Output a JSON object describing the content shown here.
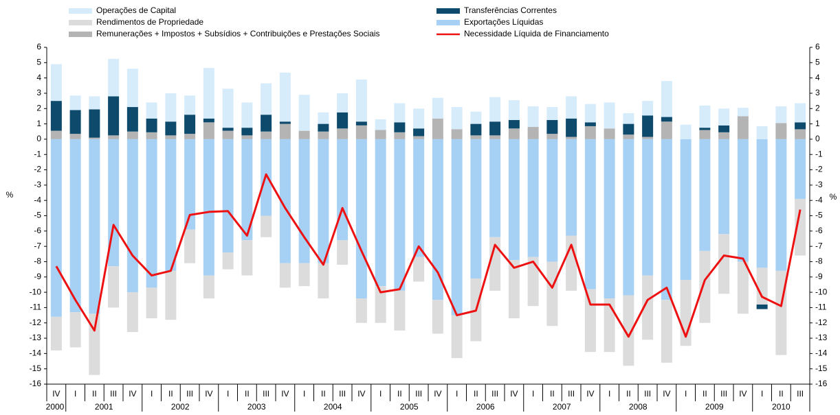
{
  "chart_data": {
    "type": "bar",
    "stacked": true,
    "ylabel": "%",
    "y2label": "%",
    "categories": [
      "IV",
      "I",
      "II",
      "III",
      "IV",
      "I",
      "II",
      "III",
      "IV",
      "I",
      "II",
      "III",
      "IV",
      "I",
      "II",
      "III",
      "IV",
      "I",
      "II",
      "III",
      "IV",
      "I",
      "II",
      "III",
      "IV",
      "I",
      "II",
      "III",
      "IV",
      "I",
      "II",
      "III",
      "IV",
      "I",
      "II",
      "III",
      "IV",
      "I",
      "II",
      "III"
    ],
    "year_labels": [
      "2000",
      "2001",
      "2002",
      "2003",
      "2004",
      "2005",
      "2006",
      "2007",
      "2008",
      "2009",
      "2010"
    ],
    "ylim": [
      -16,
      6
    ],
    "yticks": [
      -16,
      -15,
      -14,
      -13,
      -12,
      -11,
      -10,
      -9,
      -8,
      -7,
      -6,
      -5,
      -4,
      -3,
      -2,
      -1,
      0,
      1,
      2,
      3,
      4,
      5,
      6
    ],
    "y2lim": [
      -16,
      6
    ],
    "y2ticks": [
      -16,
      -15,
      -14,
      -13,
      -12,
      -11,
      -10,
      -9,
      -8,
      -7,
      -6,
      -5,
      -4,
      -3,
      -2,
      -1,
      0,
      1,
      2,
      3,
      4,
      5,
      6
    ],
    "series": [
      {
        "name": "Operações de Capital",
        "color": "#d6ecfb",
        "values": [
          2.4,
          0.95,
          0.85,
          2.45,
          2.5,
          1.05,
          1.85,
          1.25,
          3.3,
          2.55,
          1.65,
          2.05,
          3.2,
          2.35,
          0.75,
          1.25,
          2.75,
          0.7,
          1.25,
          1.3,
          1.35,
          1.45,
          0.8,
          1.6,
          1.3,
          1.35,
          0.85,
          1.45,
          1.2,
          1.7,
          0.7,
          0.95,
          2.35,
          0.95,
          1.45,
          1.1,
          0.55,
          0.85,
          1.1,
          1.25
        ]
      },
      {
        "name": "Rendimentos de Propriedade",
        "color": "#dcdcdc",
        "values": [
          -2.2,
          -2.3,
          -4.0,
          -2.7,
          -2.6,
          -2.0,
          -3.2,
          -2.2,
          -1.5,
          -1.1,
          -2.3,
          -1.4,
          -1.6,
          -1.5,
          -2.3,
          -1.6,
          -1.6,
          -2.4,
          -2.6,
          -1.6,
          -2.2,
          -2.8,
          -4.1,
          -3.5,
          -3.8,
          -3.2,
          -4.2,
          -3.6,
          -4.1,
          -3.5,
          -4.6,
          -4.2,
          -4.1,
          -4.3,
          -4.7,
          -3.9,
          -3.4,
          -2.4,
          -5.5,
          -3.7
        ]
      },
      {
        "name": "Remunerações + Impostos + Subsídios + Contribuições e Prestações Sociais",
        "color": "#b4b4b4",
        "values": [
          0.55,
          0.35,
          0.1,
          0.25,
          0.5,
          0.45,
          0.25,
          0.35,
          1.1,
          0.55,
          0.25,
          0.5,
          1.0,
          0.55,
          0.5,
          0.7,
          0.9,
          0.6,
          0.45,
          0.2,
          1.35,
          0.65,
          0.25,
          0.25,
          0.7,
          0.8,
          0.35,
          0.15,
          0.85,
          0.7,
          0.3,
          0.15,
          1.15,
          0,
          0.6,
          0.45,
          1.5,
          0,
          1.05,
          0.65
        ]
      },
      {
        "name": "Transferências Correntes",
        "color": "#0d4a6b",
        "values": [
          1.95,
          1.55,
          1.85,
          2.55,
          1.6,
          0.9,
          0.9,
          1.25,
          0.25,
          0.2,
          0.5,
          1.1,
          0.15,
          0,
          0.5,
          1.05,
          0.25,
          0,
          0.65,
          0.5,
          0,
          0,
          0.75,
          0.9,
          0.55,
          0,
          0.9,
          1.2,
          0.25,
          0,
          0.7,
          1.4,
          0.3,
          0,
          0.15,
          0.45,
          0,
          -0.3,
          0,
          0.45
        ]
      },
      {
        "name": "Exportações Líquidas",
        "color": "#a6d1f5",
        "values": [
          -11.6,
          -11.3,
          -11.4,
          -8.3,
          -10.0,
          -9.7,
          -8.6,
          -5.9,
          -8.9,
          -7.4,
          -6.6,
          -5.0,
          -8.1,
          -8.1,
          -8.1,
          -6.6,
          -10.4,
          -9.6,
          -9.9,
          -7.7,
          -10.5,
          -11.5,
          -9.1,
          -6.4,
          -7.9,
          -7.7,
          -8.0,
          -6.3,
          -9.8,
          -10.4,
          -10.2,
          -8.9,
          -10.5,
          -9.2,
          -7.3,
          -6.2,
          -8.0,
          -8.4,
          -8.6,
          -3.9
        ]
      },
      {
        "name": "Necessidade Líquida de Financiamento",
        "color": "#ee1111",
        "line": true,
        "values": [
          -8.3,
          -10.5,
          -12.5,
          -5.6,
          -7.6,
          -8.9,
          -8.6,
          -4.95,
          -4.75,
          -4.7,
          -6.3,
          -2.3,
          -4.5,
          -6.4,
          -8.2,
          -4.5,
          -7.3,
          -10.0,
          -9.8,
          -7.0,
          -8.7,
          -11.5,
          -11.2,
          -6.9,
          -8.4,
          -8.0,
          -9.7,
          -6.9,
          -10.8,
          -10.8,
          -12.9,
          -10.5,
          -9.7,
          -12.9,
          -9.2,
          -7.6,
          -7.8,
          -10.3,
          -10.9,
          -4.6
        ]
      }
    ]
  }
}
